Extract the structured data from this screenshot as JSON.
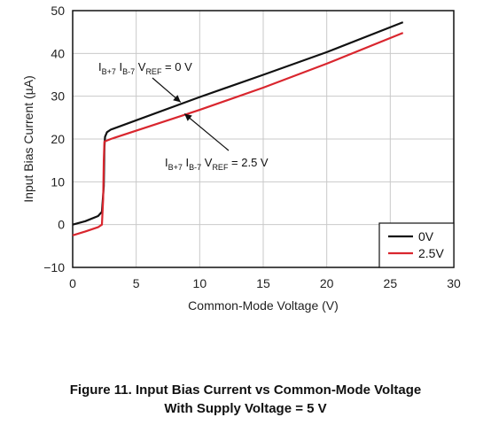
{
  "chart_data": {
    "type": "line",
    "xlabel": "Common-Mode Voltage (V)",
    "ylabel": "Input Bias Current (µA)",
    "xlim": [
      0,
      30
    ],
    "ylim": [
      -10,
      50
    ],
    "xticks": [
      "0",
      "5",
      "10",
      "15",
      "20",
      "25",
      "30"
    ],
    "yticks": [
      "−10",
      "0",
      "10",
      "20",
      "30",
      "40",
      "50"
    ],
    "grid": true,
    "legend_position": "bottom-right",
    "series": [
      {
        "name": "0V",
        "color": "#111111",
        "points": [
          [
            0,
            0
          ],
          [
            1,
            0.8
          ],
          [
            2,
            2
          ],
          [
            2.3,
            3
          ],
          [
            2.45,
            9
          ],
          [
            2.5,
            18
          ],
          [
            2.55,
            20.5
          ],
          [
            2.7,
            21.6
          ],
          [
            3,
            22.2
          ],
          [
            10,
            29.8
          ],
          [
            15,
            35
          ],
          [
            20,
            40.3
          ],
          [
            26,
            47.3
          ]
        ]
      },
      {
        "name": "2.5V",
        "color": "#d9262e",
        "points": [
          [
            0,
            -2.5
          ],
          [
            1,
            -1.6
          ],
          [
            2,
            -0.6
          ],
          [
            2.3,
            0
          ],
          [
            2.4,
            6
          ],
          [
            2.45,
            15
          ],
          [
            2.5,
            19.4
          ],
          [
            3,
            20
          ],
          [
            10,
            26.8
          ],
          [
            15,
            32
          ],
          [
            20,
            37.6
          ],
          [
            26,
            44.8
          ]
        ]
      }
    ],
    "annotations": [
      {
        "base1": "I",
        "sub1": "B+7",
        "base2": " I",
        "sub2": "B-7",
        "base3": " V",
        "sub3": "REF",
        "rest": " = 0 V",
        "target": [
          8.5,
          28.6
        ]
      },
      {
        "base1": "I",
        "sub1": "B+7",
        "base2": " I",
        "sub2": "B-7",
        "base3": " V",
        "sub3": "REF",
        "rest": " = 2.5 V",
        "target": [
          8.8,
          25.9
        ]
      }
    ]
  },
  "caption": {
    "line1": "Figure 11. Input Bias Current vs Common-Mode Voltage",
    "line2": "With Supply Voltage = 5 V"
  }
}
